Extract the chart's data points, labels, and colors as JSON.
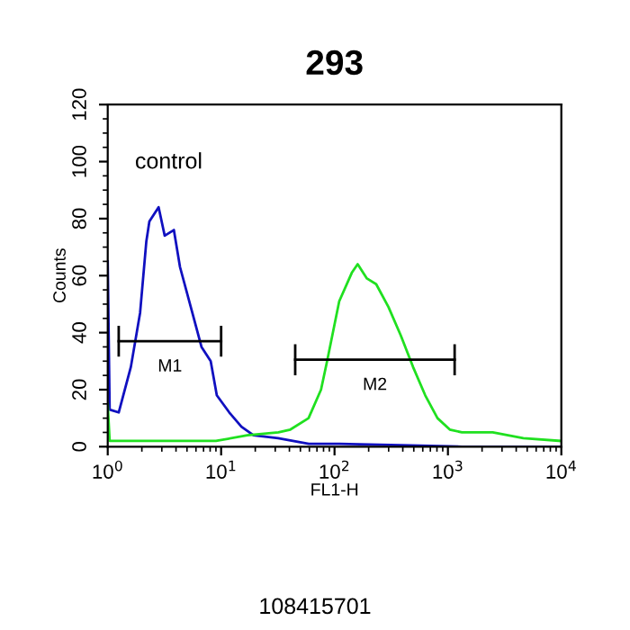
{
  "chart_data": {
    "type": "line",
    "title": "293",
    "xlabel": "FL1-H",
    "ylabel": "Counts",
    "log": "x",
    "xlim": [
      1,
      10000
    ],
    "xticks": [
      {
        "value": 1,
        "label": "10$^{0}$"
      },
      {
        "value": 10,
        "label": "10$^{1}$"
      },
      {
        "value": 100,
        "label": "10$^{2}$"
      },
      {
        "value": 1000,
        "label": "10$^{3}$"
      },
      {
        "value": 10000,
        "label": "10$^{4}$"
      }
    ],
    "ylim": [
      0,
      120
    ],
    "yticks": [
      0,
      20,
      40,
      60,
      80,
      100,
      120
    ],
    "grid": false,
    "series": [
      {
        "color": "#1010c0",
        "x": [
          1,
          1.04,
          1.25,
          1.6,
          1.93,
          2.19,
          2.33,
          2.81,
          3.18,
          3.83,
          4.34,
          5.57,
          6.71,
          8.09,
          9.16,
          11.8,
          15.1,
          19.3,
          31.8,
          59.3,
          110,
          384,
          1330,
          10000
        ],
        "values": [
          65,
          13,
          12,
          28,
          47,
          72,
          79,
          84,
          74,
          76,
          63,
          47,
          35,
          30,
          18,
          12,
          7,
          4,
          3,
          1,
          1,
          0.5,
          0,
          0
        ]
      },
      {
        "color": "#20e020",
        "x": [
          1,
          1.04,
          2,
          5,
          9,
          17,
          32,
          40.8,
          59,
          76,
          86,
          110,
          142,
          160,
          193,
          233,
          299,
          384,
          492,
          631,
          809,
          1038,
          1330,
          2483,
          4624,
          10000
        ],
        "values": [
          15,
          2,
          2,
          2,
          2,
          4,
          5,
          6,
          10,
          20,
          30,
          51,
          61,
          64,
          59,
          57,
          49,
          39,
          28,
          18,
          10,
          6,
          5,
          5,
          3,
          2
        ]
      },
      {
        "name": "M1",
        "color": "#000000",
        "x": [
          1.25,
          10
        ],
        "values": [
          37,
          37
        ]
      },
      {
        "name": "M2",
        "color": "#000000",
        "x": [
          45,
          1146
        ],
        "values": [
          30.5,
          30.5
        ]
      }
    ],
    "annotations": [
      "control",
      "108415701"
    ]
  }
}
